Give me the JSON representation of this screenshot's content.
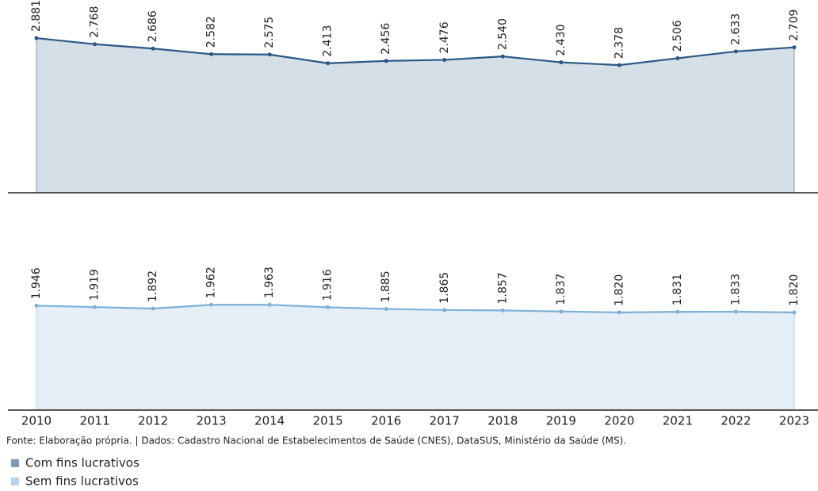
{
  "chart_data": {
    "type": "area",
    "categories": [
      "2010",
      "2011",
      "2012",
      "2013",
      "2014",
      "2015",
      "2016",
      "2017",
      "2018",
      "2019",
      "2020",
      "2021",
      "2022",
      "2023"
    ],
    "ylim": [
      0,
      3000
    ],
    "series": [
      {
        "name": "Com fins lucrativos",
        "color": "#2b5785",
        "values": [
          2881,
          2768,
          2686,
          2582,
          2575,
          2413,
          2456,
          2476,
          2540,
          2430,
          2378,
          2506,
          2633,
          2709
        ],
        "value_labels": [
          "2.881",
          "2.768",
          "2.686",
          "2.582",
          "2.575",
          "2.413",
          "2.456",
          "2.476",
          "2.540",
          "2.430",
          "2.378",
          "2.506",
          "2.633",
          "2.709"
        ]
      },
      {
        "name": "Sem fins lucrativos",
        "color": "#7fb0d8",
        "values": [
          1946,
          1919,
          1892,
          1962,
          1963,
          1916,
          1885,
          1865,
          1857,
          1837,
          1820,
          1831,
          1833,
          1820
        ],
        "value_labels": [
          "1.946",
          "1.919",
          "1.892",
          "1.962",
          "1.963",
          "1.916",
          "1.885",
          "1.865",
          "1.857",
          "1.837",
          "1.820",
          "1.831",
          "1.833",
          "1.820"
        ]
      }
    ]
  },
  "source": "Fonte: Elaboração própria. | Dados: Cadastro Nacional de Estabelecimentos de Saúde (CNES), DataSUS, Ministério da Saúde (MS)."
}
